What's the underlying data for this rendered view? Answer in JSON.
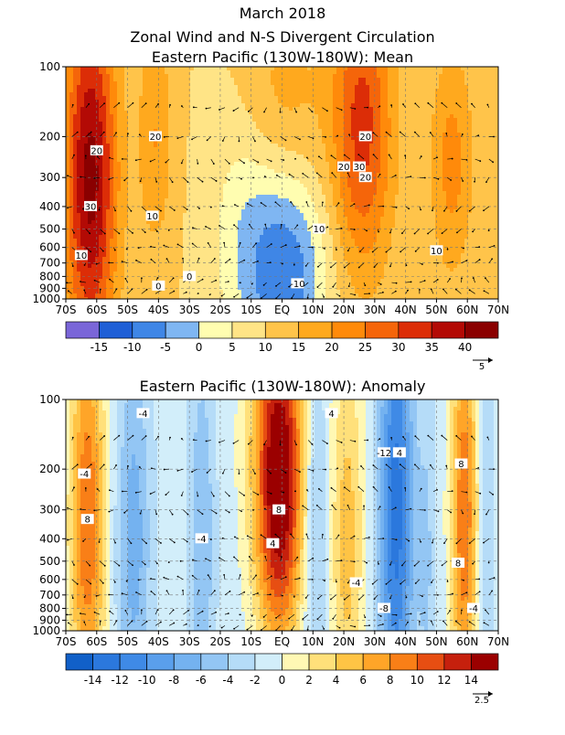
{
  "chart_data": {
    "title": "March 2018",
    "subtitle": "Zonal Wind and N-S Divergent Circulation",
    "panels": [
      {
        "type": "heatmap",
        "title": "Eastern Pacific (130W-180W): Mean",
        "x_ticks": [
          "70S",
          "60S",
          "50S",
          "40S",
          "30S",
          "20S",
          "10S",
          "EQ",
          "10N",
          "20N",
          "30N",
          "40N",
          "50N",
          "60N",
          "70N"
        ],
        "y_ticks": [
          "100",
          "200",
          "300",
          "400",
          "500",
          "600",
          "700",
          "800",
          "900",
          "1000"
        ],
        "colorbar_ticks": [
          "-15",
          "-10",
          "-5",
          "0",
          "5",
          "10",
          "15",
          "20",
          "25",
          "30",
          "35",
          "40"
        ],
        "colorbar_colors": [
          "#7a66d8",
          "#1f5fd6",
          "#3f86e6",
          "#7fb6f2",
          "#fffdb0",
          "#ffe486",
          "#ffc44a",
          "#ffa91e",
          "#ff8a0a",
          "#f5650a",
          "#dc2d07",
          "#b30a05",
          "#8a0000"
        ],
        "contour_labels": [
          "20",
          "30",
          "20",
          "10",
          "20",
          "20",
          "30",
          "10",
          "10",
          "-10",
          "20",
          "10",
          "0",
          "0"
        ],
        "vector_scale": "5",
        "centers": [
          {
            "lat": -62,
            "p": 300,
            "v": 32,
            "sx": 6,
            "sp": 0.55
          },
          {
            "lat": -41,
            "p": 200,
            "v": 10,
            "sx": 4,
            "sp": 0.35
          },
          {
            "lat": 26,
            "p": 180,
            "v": 22,
            "sx": 7,
            "sp": 0.45
          },
          {
            "lat": 55,
            "p": 260,
            "v": 12,
            "sx": 5,
            "sp": 0.35
          },
          {
            "lat": 2,
            "p": 800,
            "v": -18,
            "sx": 9,
            "sp": 0.35
          },
          {
            "lat": -12,
            "p": 500,
            "v": -8,
            "sx": 8,
            "sp": 0.4
          },
          {
            "lat": 0,
            "p": 150,
            "v": 8,
            "sx": 10,
            "sp": 0.3
          }
        ],
        "base": 10
      },
      {
        "type": "heatmap",
        "title": "Eastern Pacific (130W-180W): Anomaly",
        "x_ticks": [
          "70S",
          "60S",
          "50S",
          "40S",
          "30S",
          "20S",
          "10S",
          "EQ",
          "10N",
          "20N",
          "30N",
          "40N",
          "50N",
          "60N",
          "70N"
        ],
        "y_ticks": [
          "100",
          "200",
          "300",
          "400",
          "500",
          "600",
          "700",
          "800",
          "900",
          "1000"
        ],
        "colorbar_ticks": [
          "-14",
          "-12",
          "-10",
          "-8",
          "-6",
          "-4",
          "-2",
          "0",
          "2",
          "4",
          "6",
          "8",
          "10",
          "12",
          "14"
        ],
        "colorbar_colors": [
          "#1160c8",
          "#2b78dd",
          "#3f8ae6",
          "#5a9fec",
          "#74b2f0",
          "#93c6f4",
          "#b5dcf8",
          "#d2eefa",
          "#fff8b4",
          "#ffe07a",
          "#ffc445",
          "#ffa528",
          "#f97f17",
          "#e74e12",
          "#c6200d",
          "#9b0000"
        ],
        "contour_labels": [
          "-4",
          "8",
          "-4",
          "4",
          "-12",
          "8",
          "-4",
          "4",
          "-8",
          "-4",
          "4",
          "8",
          "-4",
          "8"
        ],
        "vector_scale": "2.5",
        "centers": [
          {
            "lat": -63,
            "p": 330,
            "v": 11,
            "sx": 4,
            "sp": 0.6
          },
          {
            "lat": -1,
            "p": 150,
            "v": 15,
            "sx": 6,
            "sp": 0.45
          },
          {
            "lat": -1,
            "p": 500,
            "v": 7,
            "sx": 5,
            "sp": 0.35
          },
          {
            "lat": 21,
            "p": 400,
            "v": 6,
            "sx": 4,
            "sp": 0.6
          },
          {
            "lat": 37,
            "p": 300,
            "v": -12,
            "sx": 4,
            "sp": 0.7
          },
          {
            "lat": 59,
            "p": 320,
            "v": 11,
            "sx": 3,
            "sp": 0.6
          },
          {
            "lat": -48,
            "p": 400,
            "v": -6,
            "sx": 4,
            "sp": 0.6
          },
          {
            "lat": -26,
            "p": 400,
            "v": -5,
            "sx": 3,
            "sp": 0.6
          },
          {
            "lat": 11,
            "p": 300,
            "v": -5,
            "sx": 3,
            "sp": 0.5
          },
          {
            "lat": 47,
            "p": 500,
            "v": -3,
            "sx": 2,
            "sp": 0.6
          },
          {
            "lat": 66,
            "p": 400,
            "v": -3,
            "sx": 2,
            "sp": 0.6
          }
        ],
        "base": -1
      }
    ]
  }
}
